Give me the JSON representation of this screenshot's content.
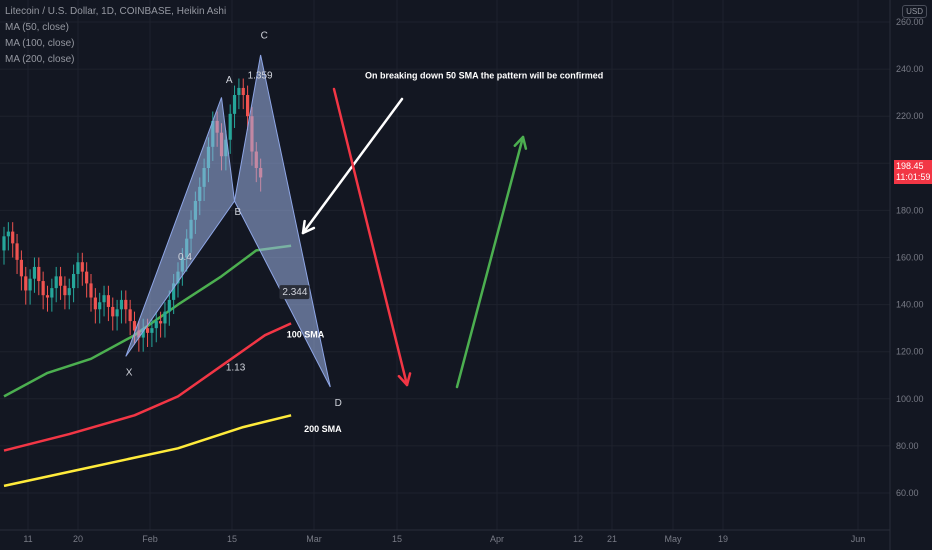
{
  "header": {
    "symbol": "Litecoin / U.S. Dollar, 1D, COINBASE, Heikin Ashi",
    "ma50": "MA (50, close)",
    "ma100": "MA (100, close)",
    "ma200": "MA (200, close)"
  },
  "currency": "USD",
  "last_price": {
    "value": "198.45",
    "countdown": "11:01:59",
    "color": "#f23645"
  },
  "colors": {
    "background": "#131722",
    "up": "#26a69a",
    "down": "#ef5350",
    "ma50": "#4caf50",
    "ma100": "#f23645",
    "ma200": "#ffeb3b",
    "pattern_fill": "#9fb4e8"
  },
  "chart_data": {
    "type": "candlestick",
    "y_ticks": [
      "260.00",
      "240.00",
      "220.00",
      "200.00",
      "180.00",
      "160.00",
      "140.00",
      "120.00",
      "100.00",
      "80.00",
      "60.00"
    ],
    "ylim": [
      57,
      262
    ],
    "x_ticks": [
      "11",
      "20",
      "Feb",
      "15",
      "Mar",
      "15",
      "Apr",
      "12",
      "21",
      "May",
      "19",
      "Jun"
    ],
    "candles": [
      {
        "o": 163,
        "c": 169
      },
      {
        "o": 169,
        "c": 171
      },
      {
        "o": 171,
        "c": 166
      },
      {
        "o": 166,
        "c": 159
      },
      {
        "o": 159,
        "c": 152
      },
      {
        "o": 152,
        "c": 146
      },
      {
        "o": 146,
        "c": 151
      },
      {
        "o": 151,
        "c": 156
      },
      {
        "o": 156,
        "c": 150
      },
      {
        "o": 150,
        "c": 144
      },
      {
        "o": 144,
        "c": 143
      },
      {
        "o": 143,
        "c": 147
      },
      {
        "o": 147,
        "c": 152
      },
      {
        "o": 152,
        "c": 148
      },
      {
        "o": 148,
        "c": 144
      },
      {
        "o": 144,
        "c": 147
      },
      {
        "o": 147,
        "c": 153
      },
      {
        "o": 153,
        "c": 158
      },
      {
        "o": 158,
        "c": 154
      },
      {
        "o": 154,
        "c": 149
      },
      {
        "o": 149,
        "c": 143
      },
      {
        "o": 143,
        "c": 138
      },
      {
        "o": 138,
        "c": 141
      },
      {
        "o": 141,
        "c": 144
      },
      {
        "o": 144,
        "c": 139
      },
      {
        "o": 139,
        "c": 135
      },
      {
        "o": 135,
        "c": 138
      },
      {
        "o": 138,
        "c": 142
      },
      {
        "o": 142,
        "c": 138
      },
      {
        "o": 138,
        "c": 133
      },
      {
        "o": 133,
        "c": 129
      },
      {
        "o": 129,
        "c": 126
      },
      {
        "o": 126,
        "c": 130
      },
      {
        "o": 130,
        "c": 128
      },
      {
        "o": 128,
        "c": 130
      },
      {
        "o": 130,
        "c": 133
      },
      {
        "o": 133,
        "c": 132
      },
      {
        "o": 132,
        "c": 137
      },
      {
        "o": 137,
        "c": 142
      },
      {
        "o": 142,
        "c": 149
      },
      {
        "o": 149,
        "c": 154
      },
      {
        "o": 154,
        "c": 160
      },
      {
        "o": 160,
        "c": 168
      },
      {
        "o": 168,
        "c": 176
      },
      {
        "o": 176,
        "c": 184
      },
      {
        "o": 184,
        "c": 190
      },
      {
        "o": 190,
        "c": 198
      },
      {
        "o": 198,
        "c": 207
      },
      {
        "o": 207,
        "c": 218
      },
      {
        "o": 218,
        "c": 213
      },
      {
        "o": 213,
        "c": 203
      },
      {
        "o": 203,
        "c": 210
      },
      {
        "o": 210,
        "c": 221
      },
      {
        "o": 221,
        "c": 229
      },
      {
        "o": 229,
        "c": 232
      },
      {
        "o": 232,
        "c": 229
      },
      {
        "o": 229,
        "c": 220
      },
      {
        "o": 220,
        "c": 205
      },
      {
        "o": 205,
        "c": 198
      },
      {
        "o": 198,
        "c": 194
      }
    ],
    "ma50": [
      [
        0,
        101
      ],
      [
        10,
        111
      ],
      [
        20,
        117
      ],
      [
        30,
        127
      ],
      [
        40,
        140
      ],
      [
        50,
        152
      ],
      [
        58,
        163
      ],
      [
        66,
        165
      ]
    ],
    "ma100": [
      [
        0,
        78
      ],
      [
        15,
        85
      ],
      [
        30,
        93
      ],
      [
        40,
        101
      ],
      [
        50,
        114
      ],
      [
        60,
        127
      ],
      [
        66,
        132
      ]
    ],
    "ma200": [
      [
        0,
        63
      ],
      [
        20,
        71
      ],
      [
        40,
        79
      ],
      [
        55,
        88
      ],
      [
        66,
        93
      ]
    ],
    "pattern": {
      "X": {
        "i": 28,
        "y": 118
      },
      "A": {
        "i": 50,
        "y": 228
      },
      "B": {
        "i": 53,
        "y": 184
      },
      "C": {
        "i": 59,
        "y": 246
      },
      "D": {
        "i": 75,
        "y": 105
      }
    },
    "labels": [
      {
        "text": "X",
        "i": 28,
        "y": 110
      },
      {
        "text": "A",
        "i": 51,
        "y": 234
      },
      {
        "text": "B",
        "i": 53,
        "y": 178
      },
      {
        "text": "C",
        "i": 59,
        "y": 253
      },
      {
        "text": "D",
        "i": 76,
        "y": 97
      },
      {
        "text": "1.359",
        "i": 56,
        "y": 236
      },
      {
        "text": "0.4",
        "i": 40,
        "y": 159
      },
      {
        "text": "2.344",
        "i": 64,
        "y": 144
      },
      {
        "text": "1.13",
        "i": 51,
        "y": 112
      }
    ],
    "annotations": [
      {
        "text": "On breaking down 50 SMA the pattern will be confirmed",
        "i": 83,
        "y": 236
      },
      {
        "text": "100 SMA",
        "i": 65,
        "y": 126
      },
      {
        "text": "200 SMA",
        "i": 69,
        "y": 86
      }
    ]
  }
}
